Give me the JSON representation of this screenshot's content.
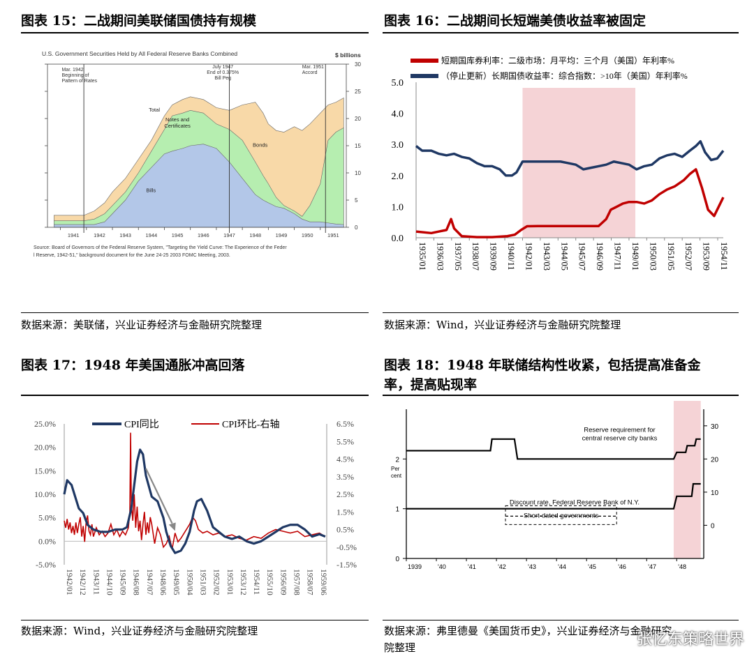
{
  "panels": {
    "p15": {
      "title": "图表 15：二战期间美联储国债持有规模",
      "source": "数据来源：美联储，兴业证券经济与金融研究院整理"
    },
    "p16": {
      "title": "图表 16：二战期间长短端美债收益率被固定",
      "source": "数据来源：Wind，兴业证券经济与金融研究院整理"
    },
    "p17": {
      "title": "图表 17：1948 年美国通胀冲高回落",
      "source": "数据来源：Wind，兴业证券经济与金融研究院整理"
    },
    "p18": {
      "title_line1": "图表 18：1948 年联储结构性收紧，包括提高准备金",
      "title_line2": "率，提高贴现率",
      "source_line1": "数据来源：弗里德曼《美国货币史》，兴业证券经济与金融研究",
      "source_line2": "院整理"
    }
  },
  "watermark": "张忆东策略世界",
  "colors": {
    "red": "#c00000",
    "navy": "#1f3864",
    "shade": "#f2c4c8",
    "total": "#f8d9a8",
    "notes": "#b6eeb0",
    "bills": "#b3c7e8"
  },
  "chart_data": [
    {
      "id": "fig15",
      "type": "area",
      "title": "U.S. Government Securities Held by All Federal Reserve Banks Combined",
      "ylabel": "$ billions",
      "x_ticks": [
        "1941",
        "1942",
        "1943",
        "1944",
        "1945",
        "1946",
        "1947",
        "1948",
        "1949",
        "1950",
        "1951"
      ],
      "y_ticks": [
        "0",
        "5",
        "10",
        "15",
        "20",
        "25",
        "30"
      ],
      "ylim": [
        0,
        30
      ],
      "xlim": [
        1940.5,
        1952
      ],
      "annotations": [
        "Mar. 1942\nBeginning of\nPattern of Rates",
        "July 1947\nEnd of 0.375%\nBill Peg",
        "Mar. 1951\nAccord"
      ],
      "annotation_x": [
        1941.9,
        1947.5,
        1951.2
      ],
      "series": [
        {
          "name": "Total",
          "x": [
            1940.75,
            1941.9,
            1942.3,
            1942.7,
            1943.0,
            1943.5,
            1944.0,
            1944.5,
            1945.0,
            1945.3,
            1945.7,
            1946.0,
            1946.5,
            1947.0,
            1947.5,
            1948.0,
            1948.5,
            1948.8,
            1949.0,
            1949.3,
            1949.6,
            1950.0,
            1950.3,
            1950.6,
            1951.0,
            1951.3,
            1951.6,
            1951.9
          ],
          "values": [
            2.2,
            2.2,
            3.0,
            4.5,
            6.5,
            9.0,
            12.5,
            16.0,
            20.5,
            22.5,
            23.5,
            24.0,
            23.5,
            22.0,
            21.5,
            22.5,
            23.0,
            21.0,
            19.0,
            17.8,
            17.5,
            18.5,
            17.8,
            19.0,
            21.0,
            22.5,
            23.0,
            23.8
          ]
        },
        {
          "name": "Notes and Certificates",
          "x": [
            1940.75,
            1941.9,
            1942.3,
            1942.7,
            1943.0,
            1943.5,
            1944.0,
            1944.5,
            1945.0,
            1945.3,
            1945.7,
            1946.0,
            1946.5,
            1947.0,
            1947.5,
            1948.0,
            1948.5,
            1948.8,
            1949.0,
            1949.3,
            1949.6,
            1950.0,
            1950.3,
            1950.6,
            1951.0,
            1951.3,
            1951.6,
            1951.9
          ],
          "values": [
            1.2,
            1.2,
            1.5,
            2.5,
            4.0,
            6.5,
            10.0,
            14.0,
            18.0,
            20.5,
            21.0,
            21.5,
            21.0,
            19.0,
            18.0,
            16.0,
            12.0,
            9.5,
            8.0,
            5.5,
            4.0,
            3.0,
            2.0,
            4.0,
            8.0,
            16.0,
            17.5,
            18.3
          ]
        },
        {
          "name": "Bills",
          "x": [
            1940.75,
            1941.9,
            1942.3,
            1942.7,
            1943.0,
            1943.5,
            1944.0,
            1944.5,
            1945.0,
            1945.3,
            1945.7,
            1946.0,
            1946.5,
            1947.0,
            1947.5,
            1948.0,
            1948.5,
            1948.8,
            1949.0,
            1949.3,
            1949.6,
            1950.0,
            1950.3,
            1950.6,
            1951.0,
            1951.3,
            1951.6,
            1951.9
          ],
          "values": [
            0.5,
            0.5,
            0.5,
            1.0,
            2.5,
            5.0,
            8.5,
            11.0,
            13.5,
            14.0,
            14.5,
            15.0,
            15.3,
            14.5,
            12.0,
            9.0,
            6.0,
            5.0,
            4.5,
            3.8,
            3.5,
            2.5,
            1.5,
            1.0,
            1.0,
            0.8,
            0.6,
            0.5
          ]
        }
      ],
      "area_labels": [
        "Total",
        "Notes and\nCertificates",
        "Bonds",
        "Bills"
      ],
      "footnote": "Source: Board of Governors of the Federal Reserve System, \"Targeting the Yield Curve: The Experience of the Federal Reserve, 1942-51,\" background document for the June 24-25 2003 FOMC Meeting, 2003."
    },
    {
      "id": "fig16",
      "type": "line",
      "x_ticks": [
        "1935/01",
        "1936/03",
        "1937/05",
        "1938/07",
        "1939/09",
        "1940/11",
        "1942/01",
        "1943/03",
        "1944/05",
        "1945/07",
        "1946/09",
        "1947/11",
        "1949/01",
        "1950/03",
        "1951/05",
        "1952/07",
        "1953/09",
        "1954/11"
      ],
      "y_ticks": [
        "0.0",
        "1.0",
        "2.0",
        "3.0",
        "4.0",
        "5.0"
      ],
      "ylim": [
        0,
        5
      ],
      "shaded_range": [
        "1942/01",
        "1949/06"
      ],
      "series": [
        {
          "name": "短期国库券利率：二级市场：月平均：三个月（美国）年利率%",
          "x": [
            1935.0,
            1936.0,
            1936.5,
            1937.0,
            1937.3,
            1937.5,
            1938.0,
            1939.0,
            1940.0,
            1941.0,
            1941.5,
            1941.9,
            1942.3,
            1943.0,
            1944.0,
            1945.0,
            1946.0,
            1947.0,
            1947.5,
            1947.8,
            1948.2,
            1948.6,
            1949.0,
            1949.5,
            1950.0,
            1950.5,
            1951.0,
            1951.5,
            1952.0,
            1952.6,
            1953.0,
            1953.4,
            1953.8,
            1954.2,
            1954.6,
            1955.0,
            1955.2
          ],
          "values": [
            0.2,
            0.15,
            0.2,
            0.25,
            0.6,
            0.3,
            0.05,
            0.02,
            0.02,
            0.05,
            0.1,
            0.25,
            0.37,
            0.375,
            0.375,
            0.375,
            0.375,
            0.375,
            0.6,
            0.9,
            1.0,
            1.1,
            1.15,
            1.15,
            1.1,
            1.2,
            1.4,
            1.55,
            1.65,
            1.85,
            2.05,
            2.2,
            1.6,
            0.9,
            0.7,
            1.1,
            1.3
          ]
        },
        {
          "name": "（停止更新）长期国债收益率：综合指数：>10年（美国）年利率%",
          "x": [
            1935.0,
            1935.4,
            1936.0,
            1936.5,
            1937.0,
            1937.5,
            1938.0,
            1938.5,
            1939.0,
            1939.5,
            1940.0,
            1940.5,
            1940.9,
            1941.3,
            1941.6,
            1942.0,
            1942.5,
            1943.0,
            1943.5,
            1944.0,
            1944.5,
            1945.0,
            1945.5,
            1946.0,
            1946.5,
            1947.0,
            1947.5,
            1948.0,
            1948.5,
            1949.0,
            1949.5,
            1950.0,
            1950.5,
            1951.0,
            1951.5,
            1952.0,
            1952.5,
            1953.0,
            1953.4,
            1953.7,
            1954.0,
            1954.4,
            1954.8,
            1955.2
          ],
          "values": [
            2.95,
            2.8,
            2.8,
            2.7,
            2.65,
            2.7,
            2.6,
            2.55,
            2.4,
            2.3,
            2.3,
            2.2,
            2.0,
            2.0,
            2.1,
            2.45,
            2.45,
            2.45,
            2.45,
            2.45,
            2.45,
            2.4,
            2.35,
            2.2,
            2.25,
            2.3,
            2.35,
            2.45,
            2.4,
            2.35,
            2.2,
            2.3,
            2.35,
            2.55,
            2.65,
            2.7,
            2.6,
            2.8,
            2.95,
            3.1,
            2.75,
            2.5,
            2.55,
            2.8
          ]
        }
      ]
    },
    {
      "id": "fig17",
      "type": "line",
      "x_ticks": [
        "1942/01",
        "1942/12",
        "1943/11",
        "1944/10",
        "1945/09",
        "1946/08",
        "1947/07",
        "1948/06",
        "1949/05",
        "1950/04",
        "1951/03",
        "1952/02",
        "1953/01",
        "1953/12",
        "1954/11",
        "1955/10",
        "1956/09",
        "1957/08",
        "1958/07",
        "1959/06"
      ],
      "y_ticks_left": [
        "-5.0%",
        "0.0%",
        "5.0%",
        "10.0%",
        "15.0%",
        "20.0%",
        "25.0%"
      ],
      "ylim_left": [
        -5,
        25
      ],
      "y_ticks_right": [
        "-1.5%",
        "-0.5%",
        "0.5%",
        "1.5%",
        "2.5%",
        "3.5%",
        "4.5%",
        "5.5%",
        "6.5%"
      ],
      "ylim_right": [
        -1.5,
        6.5
      ],
      "series": [
        {
          "name": "CPI同比",
          "axis": "left",
          "x": [
            1942.0,
            1942.2,
            1942.5,
            1942.8,
            1943.0,
            1943.3,
            1943.6,
            1944.0,
            1944.5,
            1945.0,
            1945.5,
            1946.0,
            1946.3,
            1946.6,
            1946.8,
            1947.0,
            1947.2,
            1947.4,
            1947.6,
            1948.0,
            1948.4,
            1948.8,
            1949.0,
            1949.3,
            1949.6,
            1950.0,
            1950.3,
            1950.6,
            1950.9,
            1951.1,
            1951.4,
            1951.8,
            1952.2,
            1952.6,
            1953.0,
            1953.5,
            1954.0,
            1954.5,
            1955.0,
            1955.5,
            1956.0,
            1956.5,
            1957.0,
            1957.5,
            1958.0,
            1958.5,
            1959.0,
            1959.5,
            1959.9
          ],
          "values": [
            10.0,
            13.0,
            12.0,
            9.0,
            7.0,
            6.0,
            3.5,
            2.5,
            2.0,
            2.0,
            2.5,
            2.5,
            3.0,
            7.0,
            12.0,
            17.0,
            19.5,
            18.5,
            14.0,
            9.5,
            8.5,
            5.0,
            2.0,
            -1.0,
            -2.5,
            -2.0,
            -0.5,
            2.0,
            6.5,
            8.5,
            9.0,
            6.5,
            3.0,
            2.0,
            1.0,
            0.5,
            1.0,
            0.0,
            -0.5,
            0.0,
            1.0,
            2.0,
            3.0,
            3.5,
            3.5,
            2.5,
            1.0,
            1.5,
            1.0
          ]
        },
        {
          "name": "CPI环比-右轴",
          "axis": "right",
          "x": [
            1942.0,
            1942.1,
            1942.2,
            1942.3,
            1942.4,
            1942.5,
            1942.6,
            1942.7,
            1942.8,
            1942.9,
            1943.0,
            1943.1,
            1943.2,
            1943.3,
            1943.4,
            1943.5,
            1943.6,
            1943.7,
            1943.8,
            1943.9,
            1944.0,
            1944.2,
            1944.4,
            1944.6,
            1944.8,
            1945.0,
            1945.2,
            1945.4,
            1945.6,
            1945.8,
            1946.0,
            1946.2,
            1946.4,
            1946.5,
            1946.55,
            1946.6,
            1946.7,
            1946.8,
            1946.9,
            1947.0,
            1947.1,
            1947.2,
            1947.3,
            1947.4,
            1947.5,
            1947.6,
            1947.7,
            1947.8,
            1947.9,
            1948.0,
            1948.2,
            1948.4,
            1948.6,
            1948.8,
            1949.0,
            1949.2,
            1949.4,
            1949.6,
            1949.8,
            1950.0,
            1950.3,
            1950.6,
            1950.8,
            1951.0,
            1951.2,
            1951.5,
            1951.8,
            1952.2,
            1952.6,
            1953.0,
            1953.5,
            1954.0,
            1954.5,
            1955.0,
            1955.5,
            1956.0,
            1956.5,
            1957.0,
            1957.5,
            1958.0,
            1958.5,
            1959.0,
            1959.5,
            1959.9
          ],
          "values": [
            1.0,
            0.6,
            1.1,
            0.5,
            0.9,
            0.3,
            0.7,
            0.2,
            0.9,
            0.3,
            0.8,
            1.2,
            0.1,
            0.7,
            -0.2,
            0.9,
            1.3,
            0.4,
            0.2,
            0.8,
            0.1,
            0.6,
            0.2,
            0.4,
            0.1,
            0.3,
            0.8,
            0.2,
            0.5,
            0.1,
            0.4,
            0.2,
            0.6,
            1.5,
            6.0,
            2.0,
            1.0,
            2.5,
            0.6,
            1.8,
            0.4,
            1.0,
            -0.1,
            0.8,
            1.5,
            0.2,
            0.9,
            0.3,
            1.2,
            0.8,
            -0.3,
            0.6,
            0.2,
            -0.5,
            -0.3,
            0.1,
            -0.6,
            0.3,
            -0.2,
            0.0,
            0.4,
            0.8,
            1.2,
            1.0,
            0.5,
            0.3,
            0.4,
            0.2,
            0.3,
            0.1,
            0.2,
            0.0,
            -0.1,
            0.1,
            0.0,
            0.3,
            0.5,
            0.4,
            0.3,
            0.4,
            0.1,
            0.2,
            0.3,
            0.1
          ]
        }
      ]
    },
    {
      "id": "fig18",
      "type": "line",
      "x_ticks": [
        "1939",
        "'40",
        "'41",
        "'42",
        "'43",
        "'44",
        "'45",
        "'46",
        "'47",
        "'48"
      ],
      "y_ticks_left": [
        "0",
        "1",
        "2"
      ],
      "ylabel_left": "Per\ncent",
      "ylim_left": [
        0,
        3
      ],
      "y_ticks_right": [
        "0",
        "10",
        "20",
        "30"
      ],
      "ylim_right": [
        -10,
        35
      ],
      "shaded_range": [
        "1947.9",
        "1948.8"
      ],
      "series": [
        {
          "name": "Reserve requirement for central reserve city banks",
          "axis": "right",
          "x": [
            1939.0,
            1941.8,
            1941.85,
            1942.6,
            1942.7,
            1947.9,
            1948.0,
            1948.3,
            1948.35,
            1948.6,
            1948.65,
            1948.8
          ],
          "values": [
            22.5,
            22.5,
            26.0,
            26.0,
            20.0,
            20.0,
            22.0,
            22.0,
            24.0,
            24.0,
            26.0,
            26.0
          ]
        },
        {
          "name": "Discount rate, Federal Reserve Bank of N.Y.",
          "axis": "left",
          "x": [
            1939.0,
            1947.9,
            1948.0,
            1948.5,
            1948.55,
            1948.8
          ],
          "values": [
            1.0,
            1.0,
            1.25,
            1.25,
            1.5,
            1.5
          ]
        },
        {
          "name": "Short-dated governments",
          "axis": "left",
          "x": [
            1942.3,
            1946.0
          ],
          "values": [
            0.85,
            0.85
          ]
        }
      ]
    }
  ]
}
